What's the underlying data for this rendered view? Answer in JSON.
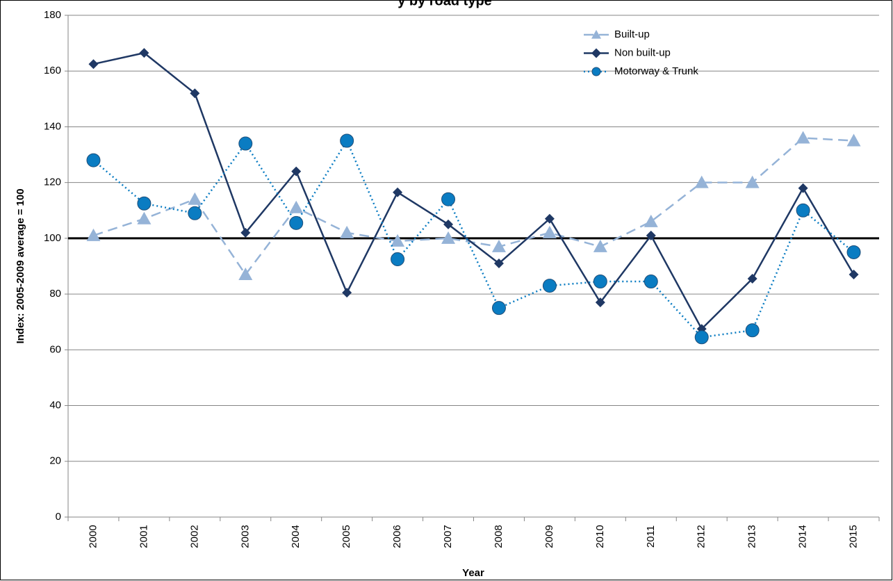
{
  "chart_data": {
    "type": "line",
    "title": "y by road type",
    "x_label": "Year",
    "y_label": "Index: 2005-2009 average = 100",
    "categories": [
      "2000",
      "2001",
      "2002",
      "2003",
      "2004",
      "2005",
      "2006",
      "2007",
      "2008",
      "2009",
      "2010",
      "2011",
      "2012",
      "2013",
      "2014",
      "2015"
    ],
    "series": [
      {
        "name": "Built-up",
        "color": "#95b3d7",
        "marker": "triangle",
        "dash": "14 8",
        "values": [
          101,
          107,
          114,
          87,
          111,
          102,
          99,
          100,
          97,
          102,
          97,
          106,
          120,
          120,
          136,
          135
        ]
      },
      {
        "name": "Non built-up",
        "color": "#1f3864",
        "marker": "diamond",
        "dash": "none",
        "values": [
          162.5,
          166.5,
          152,
          102,
          124,
          80.5,
          116.5,
          105,
          91,
          107,
          77,
          101,
          67.5,
          85.5,
          118,
          87
        ]
      },
      {
        "name": "Motorway & Trunk",
        "color": "#0a7cc2",
        "marker": "circle",
        "dash": "2 4",
        "values": [
          128,
          112.5,
          109,
          134,
          105.5,
          135,
          92.5,
          114,
          75,
          83,
          84.5,
          84.5,
          64.5,
          67,
          110,
          95
        ]
      }
    ],
    "reference_line": 100,
    "ylim": [
      0,
      180
    ],
    "yticks": [
      0,
      20,
      40,
      60,
      80,
      100,
      120,
      140,
      160,
      180
    ],
    "grid": true,
    "legend": "top-right"
  }
}
